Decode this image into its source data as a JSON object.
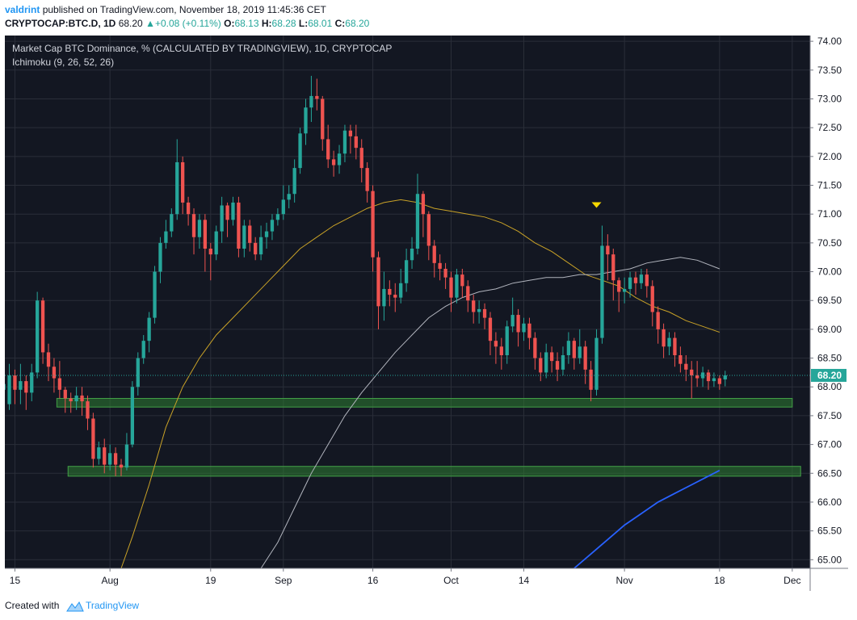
{
  "header": {
    "user": "valdrint",
    "published_text": "published on TradingView.com, November 18, 2019 11:45:36 CET",
    "symbol": "CRYPTOCAP:BTC.D, 1D",
    "last": "68.20",
    "change": "+0.08 (+0.11%)",
    "o_label": "O:",
    "o": "68.13",
    "h_label": "H:",
    "h": "68.28",
    "l_label": "L:",
    "l": "68.01",
    "c_label": "C:",
    "c": "68.20"
  },
  "chart_title": "Market Cap BTC Dominance, % (CALCULATED BY TRADINGVIEW), 1D, CRYPTOCAP",
  "indicator": "Ichimoku (9, 26, 52, 26)",
  "footer": {
    "created": "Created with",
    "brand": "TradingView"
  },
  "colors": {
    "background": "#131722",
    "grid": "#2a2e39",
    "up": "#26a69a",
    "down": "#ef5350",
    "zone": "#2e7d32",
    "ma_yellow": "#c9a227",
    "ma_white": "#b2b5be",
    "ma_blue": "#2962ff",
    "marker": "#f5d800",
    "price_line": "#26a69a"
  },
  "chart_data": {
    "type": "candlestick",
    "title": "Market Cap BTC Dominance, % (CALCULATED BY TRADINGVIEW), 1D, CRYPTOCAP",
    "y_axis": {
      "ylim": [
        64.85,
        74.1
      ],
      "ticks": [
        "65.00",
        "65.50",
        "66.00",
        "66.50",
        "67.00",
        "67.50",
        "68.00",
        "68.50",
        "69.00",
        "69.50",
        "70.00",
        "70.50",
        "71.00",
        "71.50",
        "72.00",
        "72.50",
        "73.00",
        "73.50",
        "74.00"
      ],
      "side": "right"
    },
    "x_axis": {
      "tick_labels": [
        {
          "label": "15",
          "day": 3
        },
        {
          "label": "Aug",
          "day": 20
        },
        {
          "label": "19",
          "day": 38
        },
        {
          "label": "Sep",
          "day": 51
        },
        {
          "label": "16",
          "day": 67
        },
        {
          "label": "Oct",
          "day": 81
        },
        {
          "label": "14",
          "day": 94
        },
        {
          "label": "Nov",
          "day": 112
        },
        {
          "label": "18",
          "day": 129
        },
        {
          "label": "Dec",
          "day": 142
        }
      ],
      "xlim": [
        1.2,
        145.2
      ]
    },
    "last_price": {
      "value": 68.2,
      "label": "68.20"
    },
    "candles": [
      [
        67.95,
        68.05,
        67.85,
        67.7
      ],
      [
        67.7,
        68.2,
        68.4,
        67.6
      ],
      [
        68.2,
        67.95,
        68.3,
        67.7
      ],
      [
        67.95,
        68.1,
        68.4,
        67.7
      ],
      [
        68.1,
        67.9,
        68.2,
        67.6
      ],
      [
        67.9,
        68.25,
        68.4,
        67.75
      ],
      [
        68.25,
        69.5,
        69.65,
        68.15
      ],
      [
        69.5,
        68.6,
        69.55,
        68.4
      ],
      [
        68.6,
        68.35,
        68.75,
        68.1
      ],
      [
        68.35,
        68.15,
        68.5,
        67.9
      ],
      [
        68.15,
        67.95,
        68.45,
        67.8
      ],
      [
        67.95,
        67.8,
        68.0,
        67.55
      ],
      [
        67.8,
        67.75,
        67.9,
        67.55
      ],
      [
        67.75,
        67.85,
        68.0,
        67.6
      ],
      [
        67.85,
        67.75,
        68.0,
        67.5
      ],
      [
        67.75,
        67.45,
        67.85,
        67.25
      ],
      [
        67.45,
        66.75,
        67.55,
        66.6
      ],
      [
        66.75,
        66.95,
        67.05,
        66.65
      ],
      [
        66.95,
        66.65,
        67.1,
        66.5
      ],
      [
        66.65,
        66.85,
        67.0,
        66.55
      ],
      [
        66.85,
        66.65,
        66.95,
        66.45
      ],
      [
        66.65,
        66.6,
        66.75,
        66.45
      ],
      [
        66.6,
        67.0,
        67.2,
        66.55
      ],
      [
        67.0,
        68.0,
        68.1,
        66.95
      ],
      [
        68.0,
        68.5,
        68.6,
        67.85
      ],
      [
        68.5,
        68.8,
        68.9,
        68.4
      ],
      [
        68.8,
        69.2,
        69.3,
        68.6
      ],
      [
        69.2,
        70.0,
        70.1,
        69.1
      ],
      [
        70.0,
        70.5,
        70.6,
        69.8
      ],
      [
        70.5,
        70.7,
        70.9,
        70.4
      ],
      [
        70.7,
        71.0,
        71.1,
        70.6
      ],
      [
        71.0,
        71.9,
        72.3,
        70.9
      ],
      [
        71.9,
        71.2,
        72.0,
        71.0
      ],
      [
        71.2,
        71.0,
        71.3,
        70.8
      ],
      [
        71.0,
        70.6,
        71.1,
        70.3
      ],
      [
        70.6,
        70.9,
        71.0,
        70.4
      ],
      [
        70.9,
        70.4,
        71.0,
        70.0
      ],
      [
        70.4,
        70.3,
        70.5,
        69.85
      ],
      [
        70.3,
        70.7,
        70.8,
        70.2
      ],
      [
        70.7,
        71.15,
        71.3,
        70.5
      ],
      [
        71.15,
        70.9,
        71.2,
        70.6
      ],
      [
        70.9,
        71.2,
        71.3,
        70.8
      ],
      [
        71.2,
        70.4,
        71.3,
        70.25
      ],
      [
        70.4,
        70.8,
        70.9,
        70.25
      ],
      [
        70.8,
        70.5,
        70.9,
        70.35
      ],
      [
        70.5,
        70.3,
        70.6,
        70.2
      ],
      [
        70.3,
        70.6,
        70.8,
        70.2
      ],
      [
        70.6,
        70.7,
        70.85,
        70.4
      ],
      [
        70.7,
        70.9,
        71.0,
        70.55
      ],
      [
        70.9,
        71.0,
        71.1,
        70.8
      ],
      [
        71.0,
        71.25,
        71.5,
        70.9
      ],
      [
        71.25,
        71.35,
        71.5,
        71.1
      ],
      [
        71.35,
        71.8,
        71.95,
        71.2
      ],
      [
        71.8,
        72.4,
        72.5,
        71.7
      ],
      [
        72.4,
        72.85,
        73.0,
        72.2
      ],
      [
        72.85,
        73.05,
        73.4,
        72.6
      ],
      [
        73.05,
        73.0,
        73.35,
        72.8
      ],
      [
        73.0,
        72.3,
        73.05,
        72.1
      ],
      [
        72.3,
        71.95,
        72.55,
        71.8
      ],
      [
        71.95,
        71.85,
        72.1,
        71.65
      ],
      [
        71.85,
        72.05,
        72.2,
        71.7
      ],
      [
        72.05,
        72.45,
        72.55,
        71.9
      ],
      [
        72.45,
        72.35,
        72.55,
        72.05
      ],
      [
        72.35,
        72.15,
        72.55,
        71.95
      ],
      [
        72.15,
        71.8,
        72.3,
        71.55
      ],
      [
        71.8,
        71.4,
        71.9,
        71.2
      ],
      [
        71.4,
        70.25,
        71.5,
        70.0
      ],
      [
        70.25,
        69.4,
        70.35,
        69.0
      ],
      [
        69.4,
        69.7,
        70.0,
        69.15
      ],
      [
        69.7,
        69.6,
        69.85,
        69.4
      ],
      [
        69.6,
        69.55,
        69.8,
        69.3
      ],
      [
        69.55,
        69.8,
        70.05,
        69.45
      ],
      [
        69.8,
        70.2,
        70.4,
        69.65
      ],
      [
        70.2,
        70.4,
        70.6,
        70.05
      ],
      [
        70.4,
        71.35,
        71.7,
        70.3
      ],
      [
        71.35,
        71.0,
        71.4,
        70.6
      ],
      [
        71.0,
        70.45,
        71.05,
        70.2
      ],
      [
        70.45,
        70.15,
        70.55,
        69.9
      ],
      [
        70.15,
        70.05,
        70.3,
        69.85
      ],
      [
        70.05,
        69.9,
        70.15,
        69.7
      ],
      [
        69.9,
        69.55,
        70.0,
        69.3
      ],
      [
        69.55,
        69.95,
        70.05,
        69.45
      ],
      [
        69.95,
        69.75,
        70.05,
        69.55
      ],
      [
        69.75,
        69.5,
        69.85,
        69.3
      ],
      [
        69.5,
        69.3,
        69.6,
        69.1
      ],
      [
        69.3,
        69.35,
        69.5,
        69.1
      ],
      [
        69.35,
        69.2,
        69.45,
        69.0
      ],
      [
        69.2,
        68.8,
        69.3,
        68.55
      ],
      [
        68.8,
        68.7,
        68.95,
        68.4
      ],
      [
        68.7,
        68.55,
        68.85,
        68.3
      ],
      [
        68.55,
        69.05,
        69.15,
        68.4
      ],
      [
        69.05,
        69.25,
        69.55,
        68.95
      ],
      [
        69.25,
        68.95,
        69.35,
        68.7
      ],
      [
        68.95,
        69.1,
        69.2,
        68.8
      ],
      [
        69.1,
        68.85,
        69.2,
        68.65
      ],
      [
        68.85,
        68.5,
        68.95,
        68.3
      ],
      [
        68.5,
        68.25,
        68.6,
        68.1
      ],
      [
        68.25,
        68.6,
        68.75,
        68.15
      ],
      [
        68.6,
        68.45,
        68.7,
        68.25
      ],
      [
        68.45,
        68.3,
        68.6,
        68.1
      ],
      [
        68.3,
        68.55,
        68.7,
        68.2
      ],
      [
        68.55,
        68.8,
        68.95,
        68.4
      ],
      [
        68.8,
        68.5,
        68.85,
        68.3
      ],
      [
        68.5,
        68.7,
        69.0,
        68.4
      ],
      [
        68.7,
        68.3,
        68.8,
        68.05
      ],
      [
        68.3,
        67.95,
        68.45,
        67.75
      ],
      [
        67.95,
        68.85,
        69.0,
        67.85
      ],
      [
        68.85,
        70.45,
        70.8,
        68.75
      ],
      [
        70.45,
        70.3,
        70.65,
        69.85
      ],
      [
        70.3,
        69.85,
        70.4,
        69.5
      ],
      [
        69.85,
        69.65,
        69.9,
        69.3
      ],
      [
        69.65,
        69.7,
        69.9,
        69.45
      ],
      [
        69.7,
        69.9,
        70.0,
        69.55
      ],
      [
        69.9,
        69.8,
        70.0,
        69.6
      ],
      [
        69.8,
        69.95,
        70.05,
        69.7
      ],
      [
        69.95,
        69.75,
        70.05,
        69.55
      ],
      [
        69.75,
        69.3,
        69.85,
        69.05
      ],
      [
        69.3,
        69.0,
        69.4,
        68.75
      ],
      [
        69.0,
        68.7,
        69.1,
        68.5
      ],
      [
        68.7,
        68.85,
        68.95,
        68.55
      ],
      [
        68.85,
        68.55,
        68.95,
        68.35
      ],
      [
        68.55,
        68.4,
        68.7,
        68.25
      ],
      [
        68.4,
        68.3,
        68.55,
        68.1
      ],
      [
        68.3,
        68.2,
        68.45,
        67.8
      ],
      [
        68.2,
        68.15,
        68.45,
        68.0
      ],
      [
        68.15,
        68.25,
        68.35,
        68.0
      ],
      [
        68.25,
        68.1,
        68.3,
        67.95
      ],
      [
        68.1,
        68.15,
        68.25,
        68.0
      ],
      [
        68.15,
        68.05,
        68.2,
        67.95
      ],
      [
        68.13,
        68.2,
        68.28,
        68.01
      ]
    ],
    "series": [
      {
        "style": "yellow",
        "points": [
          [
            22,
            64.85
          ],
          [
            24,
            65.4
          ],
          [
            27,
            66.3
          ],
          [
            30,
            67.3
          ],
          [
            33,
            68.0
          ],
          [
            36,
            68.5
          ],
          [
            39,
            68.9
          ],
          [
            42,
            69.2
          ],
          [
            45,
            69.5
          ],
          [
            48,
            69.8
          ],
          [
            51,
            70.1
          ],
          [
            54,
            70.4
          ],
          [
            57,
            70.6
          ],
          [
            60,
            70.8
          ],
          [
            63,
            70.95
          ],
          [
            66,
            71.1
          ],
          [
            69,
            71.2
          ],
          [
            72,
            71.25
          ],
          [
            75,
            71.2
          ],
          [
            78,
            71.1
          ],
          [
            81,
            71.05
          ],
          [
            84,
            71.0
          ],
          [
            87,
            70.95
          ],
          [
            90,
            70.85
          ],
          [
            93,
            70.7
          ],
          [
            96,
            70.5
          ],
          [
            99,
            70.35
          ],
          [
            102,
            70.15
          ],
          [
            105,
            69.95
          ],
          [
            108,
            69.85
          ],
          [
            111,
            69.75
          ],
          [
            114,
            69.55
          ],
          [
            117,
            69.4
          ],
          [
            120,
            69.3
          ],
          [
            123,
            69.15
          ],
          [
            126,
            69.05
          ],
          [
            129,
            68.95
          ]
        ]
      },
      {
        "style": "white",
        "points": [
          [
            47,
            64.85
          ],
          [
            50,
            65.3
          ],
          [
            53,
            65.9
          ],
          [
            56,
            66.5
          ],
          [
            59,
            67.0
          ],
          [
            62,
            67.5
          ],
          [
            65,
            67.9
          ],
          [
            68,
            68.25
          ],
          [
            71,
            68.6
          ],
          [
            74,
            68.9
          ],
          [
            77,
            69.2
          ],
          [
            80,
            69.4
          ],
          [
            83,
            69.55
          ],
          [
            86,
            69.65
          ],
          [
            89,
            69.7
          ],
          [
            92,
            69.8
          ],
          [
            95,
            69.85
          ],
          [
            98,
            69.9
          ],
          [
            101,
            69.9
          ],
          [
            104,
            69.95
          ],
          [
            107,
            69.95
          ],
          [
            110,
            70.0
          ],
          [
            113,
            70.05
          ],
          [
            116,
            70.15
          ],
          [
            119,
            70.2
          ],
          [
            122,
            70.25
          ],
          [
            125,
            70.2
          ],
          [
            129,
            70.05
          ]
        ]
      },
      {
        "style": "blue",
        "points": [
          [
            103,
            64.85
          ],
          [
            106,
            65.1
          ],
          [
            109,
            65.35
          ],
          [
            112,
            65.6
          ],
          [
            115,
            65.8
          ],
          [
            118,
            66.0
          ],
          [
            121,
            66.15
          ],
          [
            124,
            66.3
          ],
          [
            127,
            66.45
          ],
          [
            129,
            66.55
          ]
        ]
      }
    ],
    "zones": [
      {
        "y_from": 67.65,
        "y_to": 67.8,
        "x_from": 10.5,
        "x_to": 142
      },
      {
        "y_from": 66.45,
        "y_to": 66.62,
        "x_from": 12.5,
        "x_to": 143.5
      }
    ],
    "marker": {
      "day": 107,
      "value": 71.15
    }
  }
}
